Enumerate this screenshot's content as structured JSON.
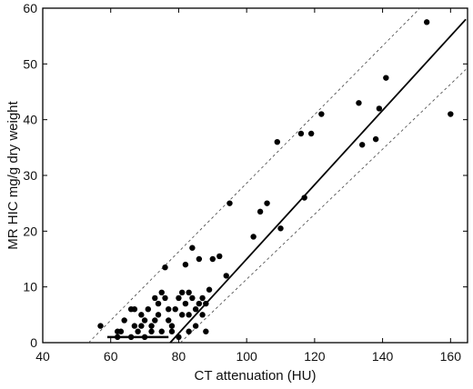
{
  "chart_data": {
    "type": "scatter",
    "title": "",
    "xlabel": "CT attenuation (HU)",
    "ylabel": "MR HIC mg/g dry weight",
    "xlim": [
      40,
      165
    ],
    "ylim": [
      0,
      60
    ],
    "xticks": [
      40,
      60,
      80,
      100,
      120,
      140,
      160
    ],
    "yticks": [
      0,
      10,
      20,
      30,
      40,
      50,
      60
    ],
    "grid": false,
    "legend": "none",
    "points": [
      [
        57,
        3
      ],
      [
        62,
        1
      ],
      [
        62,
        2
      ],
      [
        63,
        2
      ],
      [
        64,
        4
      ],
      [
        66,
        1
      ],
      [
        66,
        6
      ],
      [
        67,
        3
      ],
      [
        67,
        6
      ],
      [
        68,
        2
      ],
      [
        69,
        3
      ],
      [
        69,
        5
      ],
      [
        70,
        1
      ],
      [
        70,
        4
      ],
      [
        71,
        6
      ],
      [
        72,
        2
      ],
      [
        72,
        3
      ],
      [
        73,
        4
      ],
      [
        73,
        8
      ],
      [
        74,
        5
      ],
      [
        74,
        7
      ],
      [
        75,
        2
      ],
      [
        75,
        9
      ],
      [
        76,
        8
      ],
      [
        76,
        13.5
      ],
      [
        77,
        6
      ],
      [
        77,
        4
      ],
      [
        78,
        2
      ],
      [
        78,
        3
      ],
      [
        79,
        6
      ],
      [
        80,
        1
      ],
      [
        80,
        8
      ],
      [
        81,
        5
      ],
      [
        81,
        9
      ],
      [
        82,
        7
      ],
      [
        82,
        14
      ],
      [
        83,
        2
      ],
      [
        83,
        5
      ],
      [
        83,
        9
      ],
      [
        84,
        8
      ],
      [
        84,
        17
      ],
      [
        85,
        6
      ],
      [
        85,
        3
      ],
      [
        86,
        15
      ],
      [
        86,
        7
      ],
      [
        87,
        5
      ],
      [
        87,
        8
      ],
      [
        88,
        2
      ],
      [
        88,
        7
      ],
      [
        89,
        9.5
      ],
      [
        90,
        15
      ],
      [
        92,
        15.5
      ],
      [
        94,
        12
      ],
      [
        95,
        25
      ],
      [
        102,
        19
      ],
      [
        104,
        23.5
      ],
      [
        106,
        25
      ],
      [
        109,
        36
      ],
      [
        110,
        20.5
      ],
      [
        116,
        37.5
      ],
      [
        117,
        26
      ],
      [
        119,
        37.5
      ],
      [
        122,
        41
      ],
      [
        133,
        43
      ],
      [
        134,
        35.5
      ],
      [
        138,
        36.5
      ],
      [
        139,
        42
      ],
      [
        141,
        47.5
      ],
      [
        153,
        57.5
      ],
      [
        160,
        41
      ]
    ],
    "lines": [
      {
        "style": "solid",
        "x": [
          77.5,
          164.5
        ],
        "y": [
          0,
          58
        ]
      },
      {
        "style": "dashed",
        "x": [
          53.5,
          151
        ],
        "y": [
          0,
          60
        ]
      },
      {
        "style": "dashed",
        "x": [
          80.5,
          164.5
        ],
        "y": [
          0,
          49
        ]
      },
      {
        "style": "solid-thick",
        "x": [
          59,
          77
        ],
        "y": [
          1,
          1
        ]
      }
    ]
  }
}
